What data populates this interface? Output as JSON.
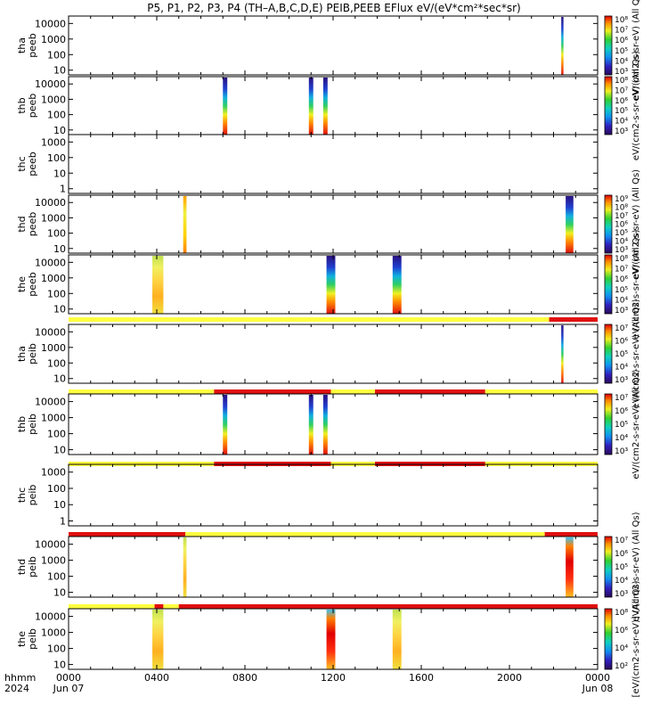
{
  "title": "P5, P1, P2, P3, P4 (TH–A,B,C,D,E) PEIB,PEEB EFlux eV/(eV*cm²*sec*sr)",
  "xaxis": {
    "header_label": "hhmm",
    "year_label": "2024",
    "ticks": [
      {
        "hhmm": 0,
        "label": "0000",
        "sub": "Jun 07"
      },
      {
        "hhmm": 400,
        "label": "0400",
        "sub": ""
      },
      {
        "hhmm": 800,
        "label": "0800",
        "sub": ""
      },
      {
        "hhmm": 1200,
        "label": "1200",
        "sub": ""
      },
      {
        "hhmm": 1600,
        "label": "1600",
        "sub": ""
      },
      {
        "hhmm": 2000,
        "label": "2000",
        "sub": ""
      },
      {
        "hhmm": 2400,
        "label": "0000",
        "sub": "Jun 08"
      }
    ],
    "range_hours": [
      0,
      24
    ]
  },
  "colors": {
    "mode_fast": "#ffff40",
    "mode_slow": "#e01010"
  },
  "chart_data": {
    "type": "heatmap",
    "x_unit": "hours since 2024-06-07 00:00 UT",
    "y_scale": "log",
    "panels": [
      {
        "id": "tha-peeb",
        "ylabel": [
          "tha",
          "peeb"
        ],
        "yticks": [
          "10",
          "100",
          "1000",
          "10000"
        ],
        "ylim": [
          5,
          30000
        ],
        "colorbar": {
          "labels": [
            "10⁸",
            "10⁷",
            "10⁶",
            "10⁵",
            "10⁴",
            "10³"
          ],
          "title": "eV/(cm2-s-sr-eV) (All Qs)"
        },
        "intervals": [
          {
            "start_h": 22.35,
            "end_h": 22.45,
            "style": "spike"
          }
        ]
      },
      {
        "id": "thb-peeb",
        "ylabel": [
          "thb",
          "peeb"
        ],
        "yticks": [
          "10",
          "100",
          "1000",
          "10000"
        ],
        "ylim": [
          5,
          30000
        ],
        "colorbar": {
          "labels": [
            "10⁸",
            "10⁷",
            "10⁶",
            "10⁵",
            "10⁴",
            "10³"
          ],
          "title": "eV/(cm2-s-sr-eV) (All Qs)"
        },
        "intervals": [
          {
            "start_h": 7.0,
            "end_h": 7.2,
            "style": "burst"
          },
          {
            "start_h": 10.9,
            "end_h": 11.1,
            "style": "burst"
          },
          {
            "start_h": 11.55,
            "end_h": 11.75,
            "style": "burst"
          }
        ]
      },
      {
        "id": "thc-peeb",
        "ylabel": [
          "thc",
          "peeb"
        ],
        "yticks": [
          "1",
          "10",
          "100",
          "1000"
        ],
        "ylim": [
          0.5,
          3000
        ],
        "colorbar": null,
        "intervals": []
      },
      {
        "id": "thd-peeb",
        "ylabel": [
          "thd",
          "peeb"
        ],
        "yticks": [
          "10",
          "100",
          "1000",
          "10000"
        ],
        "ylim": [
          5,
          30000
        ],
        "colorbar": {
          "labels": [
            "10⁹",
            "10⁸",
            "10⁷",
            "10⁶",
            "10⁵",
            "10⁴",
            "10³"
          ],
          "title": "eV/(cm2-s-sr-eV) (All Qs)"
        },
        "intervals": [
          {
            "start_h": 5.2,
            "end_h": 5.35,
            "style": "thin"
          },
          {
            "start_h": 22.55,
            "end_h": 22.9,
            "style": "burst"
          }
        ]
      },
      {
        "id": "the-peeb",
        "ylabel": [
          "the",
          "peeb"
        ],
        "yticks": [
          "10",
          "100",
          "1000",
          "10000"
        ],
        "ylim": [
          5,
          30000
        ],
        "colorbar": {
          "labels": [
            "10⁸",
            "10⁷",
            "10⁶",
            "10⁵",
            "10⁴",
            "10³"
          ],
          "title": "eV/(cm2-s-sr-eV) (All Qs)"
        },
        "intervals": [
          {
            "start_h": 3.8,
            "end_h": 4.3,
            "style": "warm"
          },
          {
            "start_h": 11.7,
            "end_h": 12.1,
            "style": "burst"
          },
          {
            "start_h": 14.7,
            "end_h": 15.1,
            "style": "burst"
          }
        ]
      },
      {
        "id": "tha-peib",
        "ylabel": [
          "tha",
          "peib"
        ],
        "yticks": [
          "10",
          "100",
          "1000",
          "10000"
        ],
        "ylim": [
          5,
          30000
        ],
        "colorbar": {
          "labels": [
            "10⁷",
            "10⁶",
            "10⁵",
            "10⁴",
            "10³"
          ],
          "title": "eV/(cm2-s-sr-eV) (All Qs)"
        },
        "intervals": [
          {
            "start_h": 22.35,
            "end_h": 22.45,
            "style": "spike"
          }
        ],
        "mode_bar": [
          {
            "start_h": 0,
            "end_h": 21.8,
            "mode": "fast"
          },
          {
            "start_h": 21.8,
            "end_h": 24,
            "mode": "slow"
          }
        ]
      },
      {
        "id": "thb-peib",
        "ylabel": [
          "thb",
          "peib"
        ],
        "yticks": [
          "10",
          "100",
          "1000",
          "10000"
        ],
        "ylim": [
          5,
          30000
        ],
        "colorbar": {
          "labels": [
            "10⁷",
            "10⁶",
            "10⁵",
            "10⁴",
            "10³"
          ],
          "title": "eV/(cm2-s-sr-eV) (All Qs)"
        },
        "intervals": [
          {
            "start_h": 7.0,
            "end_h": 7.2,
            "style": "burst"
          },
          {
            "start_h": 10.9,
            "end_h": 11.1,
            "style": "burst"
          },
          {
            "start_h": 11.55,
            "end_h": 11.75,
            "style": "burst"
          }
        ],
        "mode_bar": [
          {
            "start_h": 0,
            "end_h": 6.6,
            "mode": "fast"
          },
          {
            "start_h": 6.6,
            "end_h": 11.9,
            "mode": "slow"
          },
          {
            "start_h": 11.9,
            "end_h": 13.9,
            "mode": "fast"
          },
          {
            "start_h": 13.9,
            "end_h": 18.9,
            "mode": "slow"
          },
          {
            "start_h": 18.9,
            "end_h": 24,
            "mode": "fast"
          }
        ]
      },
      {
        "id": "thc-peib",
        "ylabel": [
          "thc",
          "peib"
        ],
        "yticks": [
          "1",
          "10",
          "100",
          "1000"
        ],
        "ylim": [
          0.5,
          3000
        ],
        "colorbar": null,
        "intervals": [],
        "mode_bar": [
          {
            "start_h": 0,
            "end_h": 6.6,
            "mode": "fast"
          },
          {
            "start_h": 6.6,
            "end_h": 11.9,
            "mode": "slow"
          },
          {
            "start_h": 11.9,
            "end_h": 13.9,
            "mode": "fast"
          },
          {
            "start_h": 13.9,
            "end_h": 18.9,
            "mode": "slow"
          },
          {
            "start_h": 18.9,
            "end_h": 24,
            "mode": "fast"
          }
        ]
      },
      {
        "id": "thd-peib",
        "ylabel": [
          "thd",
          "peib"
        ],
        "yticks": [
          "10",
          "100",
          "1000",
          "10000"
        ],
        "ylim": [
          5,
          30000
        ],
        "colorbar": {
          "labels": [
            "10⁷",
            "10⁶",
            "10⁵",
            "10⁴",
            "10³"
          ],
          "title": "eV/(cm2-s-sr-eV) (All Qs)"
        },
        "intervals": [
          {
            "start_h": 5.2,
            "end_h": 5.35,
            "style": "warm"
          },
          {
            "start_h": 22.55,
            "end_h": 22.9,
            "style": "hot"
          }
        ],
        "mode_bar": [
          {
            "start_h": 0,
            "end_h": 5.3,
            "mode": "slow"
          },
          {
            "start_h": 5.3,
            "end_h": 21.6,
            "mode": "fast"
          },
          {
            "start_h": 21.6,
            "end_h": 24,
            "mode": "slow"
          }
        ]
      },
      {
        "id": "the-peib",
        "ylabel": [
          "the",
          "peib"
        ],
        "yticks": [
          "10",
          "100",
          "1000",
          "10000"
        ],
        "ylim": [
          5,
          30000
        ],
        "colorbar": {
          "labels": [
            "10⁸",
            "10⁶",
            "10⁴",
            "10²"
          ],
          "title": "[eV/(cm2-s-sr-eV)] (All Qs)"
        },
        "intervals": [
          {
            "start_h": 3.8,
            "end_h": 4.3,
            "style": "warm"
          },
          {
            "start_h": 11.7,
            "end_h": 12.1,
            "style": "hot"
          },
          {
            "start_h": 14.7,
            "end_h": 15.1,
            "style": "warm"
          }
        ],
        "mode_bar": [
          {
            "start_h": 0,
            "end_h": 3.9,
            "mode": "fast"
          },
          {
            "start_h": 3.9,
            "end_h": 4.3,
            "mode": "slow"
          },
          {
            "start_h": 4.3,
            "end_h": 5.0,
            "mode": "fast"
          },
          {
            "start_h": 5.0,
            "end_h": 24,
            "mode": "slow"
          }
        ]
      }
    ]
  }
}
